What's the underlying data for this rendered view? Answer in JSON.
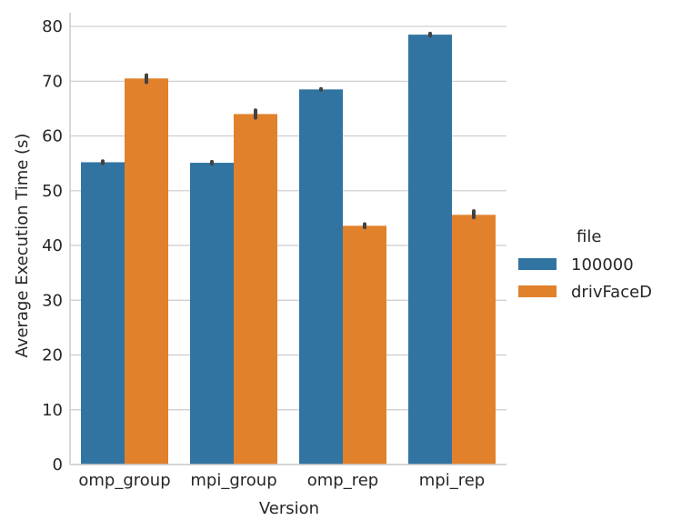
{
  "chart_data": {
    "type": "bar",
    "xlabel": "Version",
    "ylabel": "Average Execution Time (s)",
    "categories": [
      "omp_group",
      "mpi_group",
      "omp_rep",
      "mpi_rep"
    ],
    "ylim": [
      0,
      82.5
    ],
    "yticks": [
      0,
      10,
      20,
      30,
      40,
      50,
      60,
      70,
      80
    ],
    "grid": "horizontal",
    "legend": {
      "title": "file",
      "placement": "right"
    },
    "series": [
      {
        "name": "100000",
        "color": "#3274a1",
        "values": [
          55.2,
          55.1,
          68.5,
          78.5
        ],
        "error_low": [
          55.0,
          54.9,
          68.4,
          78.3
        ],
        "error_high": [
          55.4,
          55.3,
          68.6,
          78.7
        ]
      },
      {
        "name": "drivFaceD",
        "color": "#e1812c",
        "values": [
          70.5,
          64.0,
          43.6,
          45.6
        ],
        "error_low": [
          69.8,
          63.3,
          43.3,
          45.1
        ],
        "error_high": [
          71.1,
          64.7,
          43.9,
          46.3
        ]
      }
    ]
  }
}
